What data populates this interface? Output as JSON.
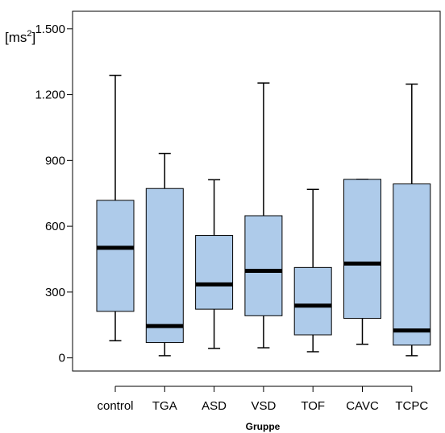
{
  "chart_data": {
    "type": "box",
    "xlabel": "Gruppe",
    "ylabel_base": "[ms",
    "ylabel_sup": "2",
    "ylabel_end": "]",
    "ylim": [
      -60,
      1580
    ],
    "yticks": [
      0,
      300,
      600,
      900,
      1200,
      1500
    ],
    "ytick_labels": [
      "0",
      "300",
      "600",
      "900",
      "1.200",
      "1.500"
    ],
    "categories": [
      "control",
      "TGA",
      "ASD",
      "VSD",
      "TOF",
      "CAVC",
      "TCPC"
    ],
    "boxes": [
      {
        "category": "control",
        "min": 78,
        "q1": 212,
        "median": 502,
        "q3": 718,
        "max": 1288
      },
      {
        "category": "TGA",
        "min": 10,
        "q1": 70,
        "median": 145,
        "q3": 772,
        "max": 932
      },
      {
        "category": "ASD",
        "min": 43,
        "q1": 222,
        "median": 335,
        "q3": 558,
        "max": 812
      },
      {
        "category": "VSD",
        "min": 46,
        "q1": 192,
        "median": 397,
        "q3": 648,
        "max": 1253
      },
      {
        "category": "TOF",
        "min": 28,
        "q1": 105,
        "median": 238,
        "q3": 412,
        "max": 768
      },
      {
        "category": "CAVC",
        "min": 62,
        "q1": 180,
        "median": 430,
        "q3": 814,
        "max": 814
      },
      {
        "category": "TCPC",
        "min": 10,
        "q1": 58,
        "median": 125,
        "q3": 793,
        "max": 1248
      }
    ],
    "box_color": "#aecbea",
    "median_color": "#000000",
    "grid": false
  }
}
